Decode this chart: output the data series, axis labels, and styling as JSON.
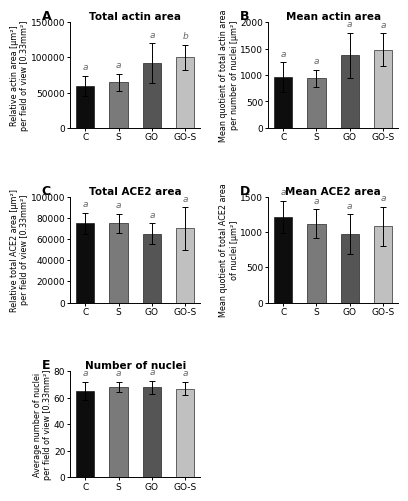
{
  "panels": {
    "A": {
      "title": "Total actin area",
      "ylabel": "Relative actin area [μm²]\nper field of view [0.33mm²]",
      "categories": [
        "C",
        "S",
        "GO",
        "GO-S"
      ],
      "values": [
        60000,
        65000,
        92000,
        100000
      ],
      "errors": [
        14000,
        12000,
        28000,
        18000
      ],
      "letters": [
        "a",
        "a",
        "a",
        "b"
      ],
      "ylim": [
        0,
        150000
      ],
      "yticks": [
        0,
        50000,
        100000,
        150000
      ],
      "colors": [
        "#0d0d0d",
        "#7a7a7a",
        "#555555",
        "#c0c0c0"
      ]
    },
    "B": {
      "title": "Mean actin area",
      "ylabel": "Mean quotient of total actin area\nper number of nuclei [μm²]",
      "categories": [
        "C",
        "S",
        "GO",
        "GO-S"
      ],
      "values": [
        960,
        940,
        1370,
        1480
      ],
      "errors": [
        280,
        160,
        430,
        310
      ],
      "letters": [
        "a",
        "a",
        "a",
        "a"
      ],
      "ylim": [
        0,
        2000
      ],
      "yticks": [
        0,
        500,
        1000,
        1500,
        2000
      ],
      "colors": [
        "#0d0d0d",
        "#7a7a7a",
        "#555555",
        "#c0c0c0"
      ]
    },
    "C": {
      "title": "Total ACE2 area",
      "ylabel": "Relative total ACE2 area [μm²]\nper field of view [0.33mm²]",
      "categories": [
        "C",
        "S",
        "GO",
        "GO-S"
      ],
      "values": [
        75000,
        75000,
        65000,
        70000
      ],
      "errors": [
        10000,
        9000,
        10000,
        20000
      ],
      "letters": [
        "a",
        "a",
        "a",
        "a"
      ],
      "ylim": [
        0,
        100000
      ],
      "yticks": [
        0,
        20000,
        40000,
        60000,
        80000,
        100000
      ],
      "colors": [
        "#0d0d0d",
        "#7a7a7a",
        "#555555",
        "#c0c0c0"
      ]
    },
    "D": {
      "title": "Mean ACE2 area",
      "ylabel": "Mean quotient of total ACE2 area\nof nuclei [μm²]",
      "categories": [
        "C",
        "S",
        "GO",
        "GO-S"
      ],
      "values": [
        1210,
        1120,
        970,
        1080
      ],
      "errors": [
        230,
        200,
        280,
        280
      ],
      "letters": [
        "a",
        "a",
        "a",
        "a"
      ],
      "ylim": [
        0,
        1500
      ],
      "yticks": [
        0,
        500,
        1000,
        1500
      ],
      "colors": [
        "#0d0d0d",
        "#7a7a7a",
        "#555555",
        "#c0c0c0"
      ]
    },
    "E": {
      "title": "Number of nuclei",
      "ylabel": "Average number of nuclei\nper field of view [0.33mm²]",
      "categories": [
        "C",
        "S",
        "GO",
        "GO-S"
      ],
      "values": [
        65,
        68,
        68,
        67
      ],
      "errors": [
        7,
        4,
        5,
        5
      ],
      "letters": [
        "a",
        "a",
        "a",
        "a"
      ],
      "ylim": [
        0,
        80
      ],
      "yticks": [
        0,
        20,
        40,
        60,
        80
      ],
      "colors": [
        "#0d0d0d",
        "#7a7a7a",
        "#555555",
        "#c0c0c0"
      ]
    }
  },
  "panel_order": [
    "A",
    "B",
    "C",
    "D",
    "E"
  ],
  "label_fontsize": 9,
  "title_fontsize": 7.5,
  "tick_fontsize": 6.5,
  "ylabel_fontsize": 5.8,
  "letter_fontsize": 6.5,
  "bar_width": 0.55,
  "capsize": 2,
  "background_color": "#ffffff"
}
